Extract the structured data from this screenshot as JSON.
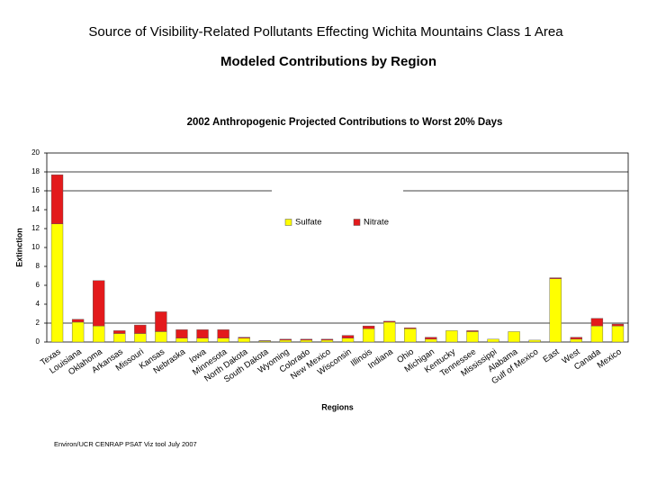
{
  "header": {
    "title": "Source of Visibility-Related Pollutants Effecting Wichita Mountains Class 1 Area",
    "subtitle": "Modeled Contributions by Region"
  },
  "footer": "Environ/UCR CENRAP PSAT Viz tool July 2007",
  "chart_data": {
    "type": "stacked_bar",
    "title": "2002 Anthropogenic Projected Contributions to Worst 20% Days",
    "x_label": "Regions",
    "y_label": "Extinction",
    "categories": [
      "Texas",
      "Louisiana",
      "Oklahoma",
      "Arkansas",
      "Missouri",
      "Kansas",
      "Nebraska",
      "Iowa",
      "Minnesota",
      "North Dakota",
      "South Dakota",
      "Wyoming",
      "Colorado",
      "New Mexico",
      "Wisconsin",
      "Illinois",
      "Indiana",
      "Ohio",
      "Michigan",
      "Kentucky",
      "Tennessee",
      "Mississippi",
      "Alabama",
      "Gulf of Mexico",
      "East",
      "West",
      "Canada",
      "Mexico"
    ],
    "series": [
      {
        "name": "Sulfate",
        "color": "#ffff00",
        "values": [
          12.5,
          2.1,
          1.7,
          0.9,
          0.9,
          1.1,
          0.4,
          0.4,
          0.4,
          0.4,
          0.1,
          0.2,
          0.2,
          0.2,
          0.4,
          1.4,
          2.1,
          1.4,
          0.3,
          1.2,
          1.1,
          0.3,
          1.1,
          0.2,
          6.7,
          0.3,
          1.7,
          1.7
        ]
      },
      {
        "name": "Nitrate",
        "color": "#e31a1c",
        "values": [
          5.2,
          0.3,
          4.8,
          0.3,
          0.9,
          2.1,
          0.9,
          0.9,
          0.9,
          0.1,
          0.05,
          0.1,
          0.1,
          0.1,
          0.3,
          0.3,
          0.1,
          0.1,
          0.2,
          0,
          0.1,
          0,
          0,
          0,
          0.1,
          0.2,
          0.8,
          0.2
        ]
      }
    ],
    "ylim": [
      0,
      20
    ],
    "yticks": [
      0,
      2,
      4,
      6,
      8,
      10,
      12,
      14,
      16,
      18,
      20
    ],
    "reference_lines": [
      2,
      16,
      18
    ]
  }
}
